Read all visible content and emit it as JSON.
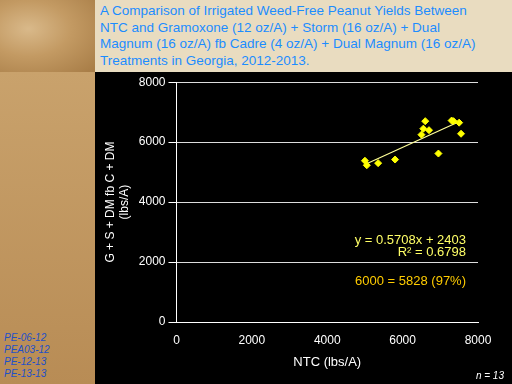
{
  "chart_data": {
    "type": "scatter",
    "title": [
      "A Comparison of Irrigated Weed-Free Peanut Yields Between",
      "NTC and Gramoxone (12 oz/A) + Storm (16 oz/A) + Dual",
      "Magnum (16 oz/A) fb Cadre (4 oz/A) + Dual Magnum (16 oz/A)",
      "Treatments in Georgia, 2012-2013."
    ],
    "x_label": "NTC (lbs/A)",
    "y_label": [
      "G + S + DM fb C + DM",
      "(lbs/A)"
    ],
    "x": [
      5000,
      5050,
      5350,
      5800,
      6950,
      6500,
      6550,
      6600,
      6700,
      7300,
      7350,
      7500,
      7550
    ],
    "values": [
      5380,
      5230,
      5300,
      5420,
      5620,
      6250,
      6450,
      6700,
      6400,
      6720,
      6700,
      6650,
      6280
    ],
    "color": "#ffff00",
    "marker": "diamond",
    "trendline": {
      "x": [
        5000,
        7550
      ],
      "values": [
        5257,
        6712
      ],
      "color": "#ffff99"
    },
    "annotations": [
      {
        "text": "y = 0.5708x + 2403",
        "color": "#ffff66"
      },
      {
        "text": "R² = 0.6798",
        "color": "#ffff66"
      },
      {
        "text": "6000 = 5828 (97%)",
        "color": "#ffcc00"
      }
    ],
    "xlim": [
      0,
      8000
    ],
    "xticks": [
      0,
      2000,
      4000,
      6000,
      8000
    ],
    "ylim": [
      0,
      8000
    ],
    "yticks": [
      0,
      2000,
      4000,
      6000,
      8000
    ],
    "grid": "y",
    "notes": [
      "PE-06-12",
      "PEA03-12",
      "PE-12-13",
      "PE-13-13"
    ],
    "n_label": "n = 13"
  }
}
